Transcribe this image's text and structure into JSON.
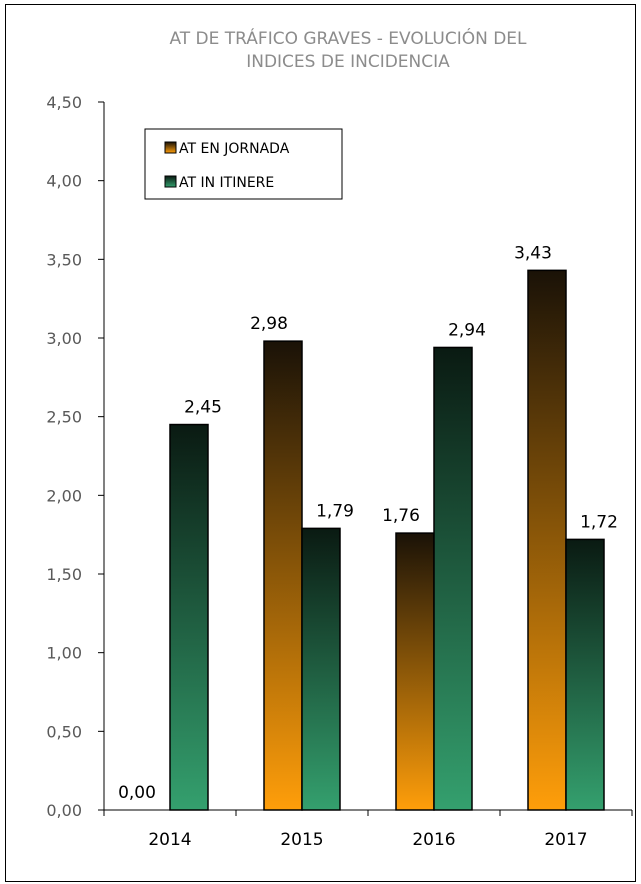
{
  "chart_data": {
    "type": "bar",
    "title_lines": [
      "AT DE TRÁFICO GRAVES - EVOLUCIÓN DEL",
      "INDICES DE INCIDENCIA"
    ],
    "categories": [
      "2014",
      "2015",
      "2016",
      "2017"
    ],
    "series": [
      {
        "name": "AT EN JORNADA",
        "values": [
          0.0,
          2.98,
          1.76,
          3.43
        ],
        "labels": [
          "0,00",
          "2,98",
          "1,76",
          "3,43"
        ],
        "color_top": "#1a1207",
        "color_bottom": "#ff9e0a"
      },
      {
        "name": "AT IN ITINERE",
        "values": [
          2.45,
          1.79,
          2.94,
          1.72
        ],
        "labels": [
          "2,45",
          "1,79",
          "2,94",
          "1,72"
        ],
        "color_top": "#0a1a12",
        "color_bottom": "#34a06e"
      }
    ],
    "yticks": [
      "0,00",
      "0,50",
      "1,00",
      "1,50",
      "2,00",
      "2,50",
      "3,00",
      "3,50",
      "4,00",
      "4,50"
    ],
    "ylim": [
      0,
      4.5
    ],
    "ystep": 0.5,
    "grid": false,
    "legend_position": "top-left",
    "xlabel": "",
    "ylabel": ""
  }
}
